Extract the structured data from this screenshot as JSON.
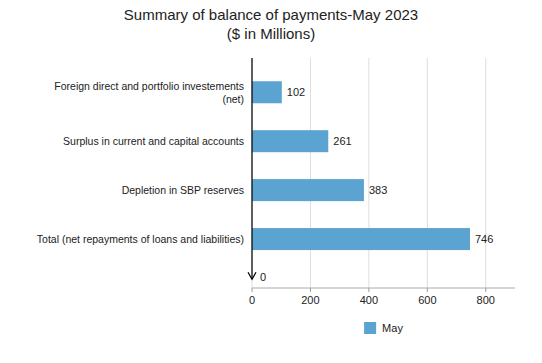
{
  "chart_data": {
    "type": "bar",
    "orientation": "horizontal",
    "title": "Summary of balance of payments-May 2023",
    "subtitle": "($ in Millions)",
    "categories": [
      "Total (net repayments of loans and liabilities)",
      "Depletion in SBP reserves",
      "Surplus in current and capital accounts",
      "Foreign direct and portfolio investements\n(net)"
    ],
    "series": [
      {
        "name": "May",
        "color": "#5BA3D0",
        "values": [
          746,
          383,
          261,
          102
        ]
      }
    ],
    "xlim": [
      0,
      900
    ],
    "xticks": [
      0,
      200,
      400,
      600,
      800
    ],
    "grid": true,
    "data_labels": true,
    "legend": "bottom",
    "annotations": [
      "0"
    ]
  }
}
